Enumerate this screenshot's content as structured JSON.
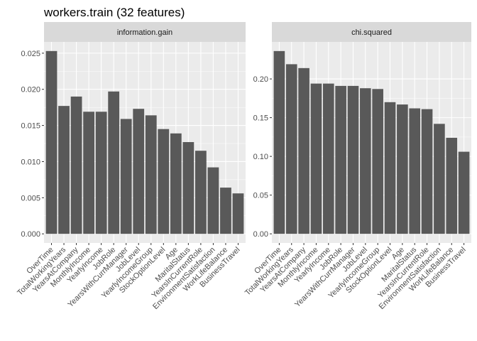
{
  "title": "workers.train (32 features)",
  "chart_data": [
    {
      "type": "bar",
      "facet": "information.gain",
      "categories": [
        "OverTime",
        "TotalWorkingYears",
        "YearsAtCompany",
        "MonthlyIncome",
        "YearlyIncome",
        "JobRole",
        "YearsWithCurrManager",
        "JobLevel",
        "YearlyIncomeGroup",
        "StockOptionLevel",
        "Age",
        "MaritalStatus",
        "YearsInCurrentRole",
        "EnvironmentSatisfaction",
        "WorkLifeBalance",
        "BusinessTravel"
      ],
      "values": [
        0.0253,
        0.0177,
        0.019,
        0.0169,
        0.0169,
        0.0197,
        0.0159,
        0.0173,
        0.0164,
        0.0145,
        0.0139,
        0.0127,
        0.0115,
        0.0092,
        0.0064,
        0.0056
      ],
      "yticks": [
        0.0,
        0.005,
        0.01,
        0.015,
        0.02,
        0.025
      ],
      "ytick_labels": [
        "0.000",
        "0.005",
        "0.010",
        "0.015",
        "0.020",
        "0.025"
      ],
      "ylim": [
        -0.00126,
        0.02656
      ],
      "grid": true,
      "bar_color": "#595959"
    },
    {
      "type": "bar",
      "facet": "chi.squared",
      "categories": [
        "OverTime",
        "TotalWorkingYears",
        "YearsAtCompany",
        "MonthlyIncome",
        "YearlyIncome",
        "JobRole",
        "YearsWithCurrManager",
        "JobLevel",
        "YearlyIncomeGroup",
        "StockOptionLevel",
        "Age",
        "MaritalStatus",
        "YearsInCurrentRole",
        "EnvironmentSatisfaction",
        "WorkLifeBalance",
        "BusinessTravel"
      ],
      "values": [
        0.236,
        0.219,
        0.214,
        0.194,
        0.194,
        0.191,
        0.191,
        0.188,
        0.187,
        0.17,
        0.167,
        0.162,
        0.161,
        0.142,
        0.124,
        0.106
      ],
      "yticks": [
        0.0,
        0.05,
        0.1,
        0.15,
        0.2
      ],
      "ytick_labels": [
        "0.00",
        "0.05",
        "0.10",
        "0.15",
        "0.20"
      ],
      "ylim": [
        -0.0118,
        0.2478
      ],
      "grid": true,
      "bar_color": "#595959"
    }
  ]
}
